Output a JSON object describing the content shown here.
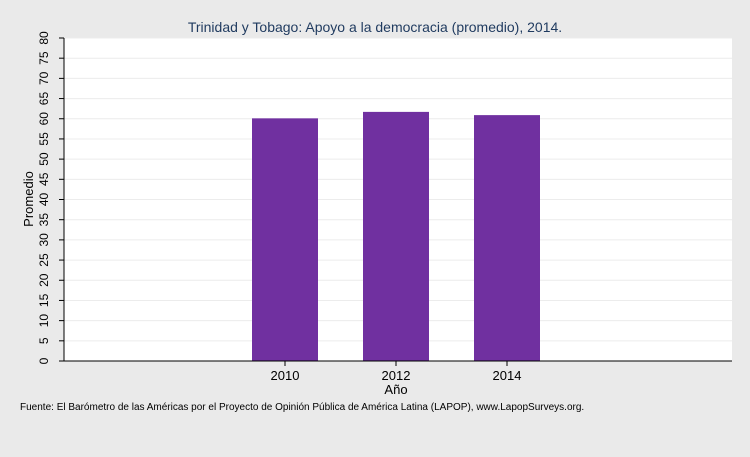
{
  "chart_data": {
    "type": "bar",
    "title": "Trinidad y Tobago: Apoyo a la democracia (promedio), 2014.",
    "xlabel": "Año",
    "ylabel": "Promedio",
    "categories": [
      "2010",
      "2012",
      "2014"
    ],
    "values": [
      60.1,
      61.7,
      60.9
    ],
    "ylim": [
      0,
      80
    ],
    "yticks": [
      0,
      5,
      10,
      15,
      20,
      25,
      30,
      35,
      40,
      45,
      50,
      55,
      60,
      65,
      70,
      75,
      80
    ],
    "grid": true,
    "bar_color": "#7030a0",
    "title_color": "#1f3a5f"
  },
  "footer": {
    "source": "Fuente: El Barómetro de las Américas por el Proyecto de Opinión Pública de América Latina (LAPOP), www.LapopSurveys.org."
  }
}
